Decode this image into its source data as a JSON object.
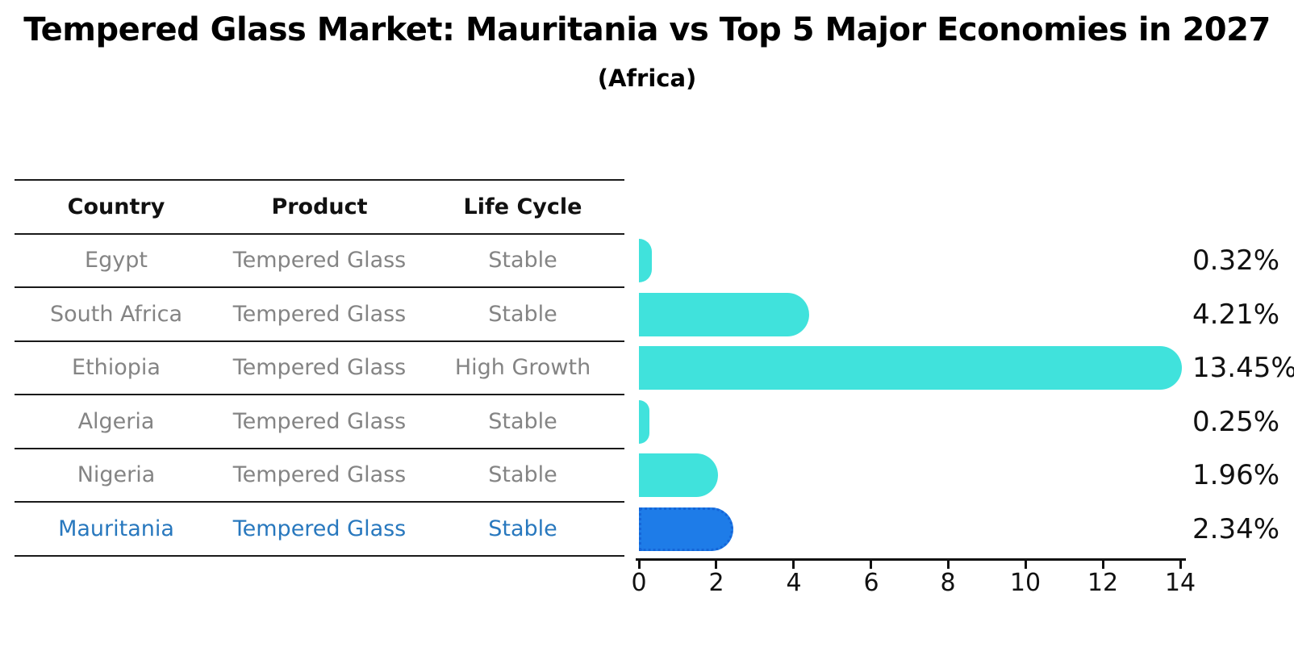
{
  "title": "Tempered Glass Market: Mauritania vs Top 5 Major Economies in 2027",
  "subtitle": "(Africa)",
  "table": {
    "headers": [
      "Country",
      "Product",
      "Life Cycle"
    ],
    "rows": [
      {
        "country": "Egypt",
        "product": "Tempered Glass",
        "life_cycle": "Stable",
        "highlight": false
      },
      {
        "country": "South Africa",
        "product": "Tempered Glass",
        "life_cycle": "Stable",
        "highlight": false
      },
      {
        "country": "Ethiopia",
        "product": "Tempered Glass",
        "life_cycle": "High Growth",
        "highlight": false
      },
      {
        "country": "Algeria",
        "product": "Tempered Glass",
        "life_cycle": "Stable",
        "highlight": false
      },
      {
        "country": "Nigeria",
        "product": "Tempered Glass",
        "life_cycle": "Stable",
        "highlight": false
      },
      {
        "country": "Mauritania",
        "product": "Tempered Glass",
        "life_cycle": "Stable",
        "highlight": true
      }
    ]
  },
  "chart_data": {
    "type": "bar",
    "orientation": "horizontal",
    "title": "Tempered Glass Market: Mauritania vs Top 5 Major Economies in 2027 (Africa)",
    "categories": [
      "Egypt",
      "South Africa",
      "Ethiopia",
      "Algeria",
      "Nigeria",
      "Mauritania"
    ],
    "values": [
      0.32,
      4.21,
      13.45,
      0.25,
      1.96,
      2.34
    ],
    "value_labels": [
      "0.32%",
      "4.21%",
      "13.45%",
      "0.25%",
      "1.96%",
      "2.34%"
    ],
    "x_ticks": [
      "0",
      "2",
      "4",
      "6",
      "8",
      "10",
      "12",
      "14"
    ],
    "xlim": [
      0,
      14
    ],
    "xlabel": "",
    "ylabel": "",
    "grid": false,
    "legend": "none",
    "highlight_index": 5
  },
  "colors": {
    "bar": "#40E2DC",
    "highlight_bar": "#1E7CE8",
    "highlight_border": "#1565D8",
    "highlight_text": "#2878BE",
    "row_text": "#848484",
    "header_text": "#111111",
    "axis": "#111111"
  }
}
